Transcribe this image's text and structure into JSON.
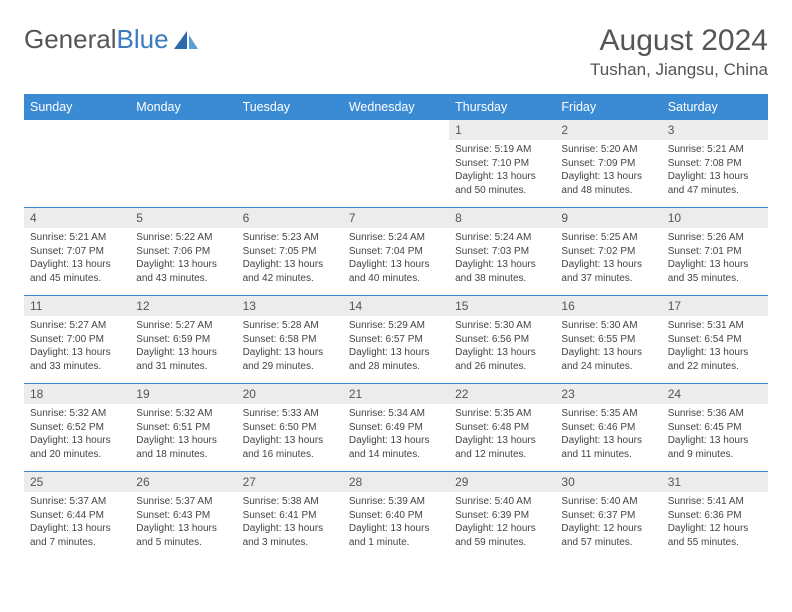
{
  "brand": {
    "part1": "General",
    "part2": "Blue"
  },
  "title": "August 2024",
  "location": "Tushan, Jiangsu, China",
  "colors": {
    "header_bg": "#3b8bd4",
    "rule": "#3b8bd4",
    "daynum_bg": "#ececec",
    "text": "#444"
  },
  "typography": {
    "title_size": 30,
    "location_size": 17,
    "header_size": 12.5,
    "cell_size": 10
  },
  "days": [
    "Sunday",
    "Monday",
    "Tuesday",
    "Wednesday",
    "Thursday",
    "Friday",
    "Saturday"
  ],
  "weeks": [
    [
      null,
      null,
      null,
      null,
      {
        "n": "1",
        "sr": "Sunrise: 5:19 AM",
        "ss": "Sunset: 7:10 PM",
        "dl": "Daylight: 13 hours and 50 minutes."
      },
      {
        "n": "2",
        "sr": "Sunrise: 5:20 AM",
        "ss": "Sunset: 7:09 PM",
        "dl": "Daylight: 13 hours and 48 minutes."
      },
      {
        "n": "3",
        "sr": "Sunrise: 5:21 AM",
        "ss": "Sunset: 7:08 PM",
        "dl": "Daylight: 13 hours and 47 minutes."
      }
    ],
    [
      {
        "n": "4",
        "sr": "Sunrise: 5:21 AM",
        "ss": "Sunset: 7:07 PM",
        "dl": "Daylight: 13 hours and 45 minutes."
      },
      {
        "n": "5",
        "sr": "Sunrise: 5:22 AM",
        "ss": "Sunset: 7:06 PM",
        "dl": "Daylight: 13 hours and 43 minutes."
      },
      {
        "n": "6",
        "sr": "Sunrise: 5:23 AM",
        "ss": "Sunset: 7:05 PM",
        "dl": "Daylight: 13 hours and 42 minutes."
      },
      {
        "n": "7",
        "sr": "Sunrise: 5:24 AM",
        "ss": "Sunset: 7:04 PM",
        "dl": "Daylight: 13 hours and 40 minutes."
      },
      {
        "n": "8",
        "sr": "Sunrise: 5:24 AM",
        "ss": "Sunset: 7:03 PM",
        "dl": "Daylight: 13 hours and 38 minutes."
      },
      {
        "n": "9",
        "sr": "Sunrise: 5:25 AM",
        "ss": "Sunset: 7:02 PM",
        "dl": "Daylight: 13 hours and 37 minutes."
      },
      {
        "n": "10",
        "sr": "Sunrise: 5:26 AM",
        "ss": "Sunset: 7:01 PM",
        "dl": "Daylight: 13 hours and 35 minutes."
      }
    ],
    [
      {
        "n": "11",
        "sr": "Sunrise: 5:27 AM",
        "ss": "Sunset: 7:00 PM",
        "dl": "Daylight: 13 hours and 33 minutes."
      },
      {
        "n": "12",
        "sr": "Sunrise: 5:27 AM",
        "ss": "Sunset: 6:59 PM",
        "dl": "Daylight: 13 hours and 31 minutes."
      },
      {
        "n": "13",
        "sr": "Sunrise: 5:28 AM",
        "ss": "Sunset: 6:58 PM",
        "dl": "Daylight: 13 hours and 29 minutes."
      },
      {
        "n": "14",
        "sr": "Sunrise: 5:29 AM",
        "ss": "Sunset: 6:57 PM",
        "dl": "Daylight: 13 hours and 28 minutes."
      },
      {
        "n": "15",
        "sr": "Sunrise: 5:30 AM",
        "ss": "Sunset: 6:56 PM",
        "dl": "Daylight: 13 hours and 26 minutes."
      },
      {
        "n": "16",
        "sr": "Sunrise: 5:30 AM",
        "ss": "Sunset: 6:55 PM",
        "dl": "Daylight: 13 hours and 24 minutes."
      },
      {
        "n": "17",
        "sr": "Sunrise: 5:31 AM",
        "ss": "Sunset: 6:54 PM",
        "dl": "Daylight: 13 hours and 22 minutes."
      }
    ],
    [
      {
        "n": "18",
        "sr": "Sunrise: 5:32 AM",
        "ss": "Sunset: 6:52 PM",
        "dl": "Daylight: 13 hours and 20 minutes."
      },
      {
        "n": "19",
        "sr": "Sunrise: 5:32 AM",
        "ss": "Sunset: 6:51 PM",
        "dl": "Daylight: 13 hours and 18 minutes."
      },
      {
        "n": "20",
        "sr": "Sunrise: 5:33 AM",
        "ss": "Sunset: 6:50 PM",
        "dl": "Daylight: 13 hours and 16 minutes."
      },
      {
        "n": "21",
        "sr": "Sunrise: 5:34 AM",
        "ss": "Sunset: 6:49 PM",
        "dl": "Daylight: 13 hours and 14 minutes."
      },
      {
        "n": "22",
        "sr": "Sunrise: 5:35 AM",
        "ss": "Sunset: 6:48 PM",
        "dl": "Daylight: 13 hours and 12 minutes."
      },
      {
        "n": "23",
        "sr": "Sunrise: 5:35 AM",
        "ss": "Sunset: 6:46 PM",
        "dl": "Daylight: 13 hours and 11 minutes."
      },
      {
        "n": "24",
        "sr": "Sunrise: 5:36 AM",
        "ss": "Sunset: 6:45 PM",
        "dl": "Daylight: 13 hours and 9 minutes."
      }
    ],
    [
      {
        "n": "25",
        "sr": "Sunrise: 5:37 AM",
        "ss": "Sunset: 6:44 PM",
        "dl": "Daylight: 13 hours and 7 minutes."
      },
      {
        "n": "26",
        "sr": "Sunrise: 5:37 AM",
        "ss": "Sunset: 6:43 PM",
        "dl": "Daylight: 13 hours and 5 minutes."
      },
      {
        "n": "27",
        "sr": "Sunrise: 5:38 AM",
        "ss": "Sunset: 6:41 PM",
        "dl": "Daylight: 13 hours and 3 minutes."
      },
      {
        "n": "28",
        "sr": "Sunrise: 5:39 AM",
        "ss": "Sunset: 6:40 PM",
        "dl": "Daylight: 13 hours and 1 minute."
      },
      {
        "n": "29",
        "sr": "Sunrise: 5:40 AM",
        "ss": "Sunset: 6:39 PM",
        "dl": "Daylight: 12 hours and 59 minutes."
      },
      {
        "n": "30",
        "sr": "Sunrise: 5:40 AM",
        "ss": "Sunset: 6:37 PM",
        "dl": "Daylight: 12 hours and 57 minutes."
      },
      {
        "n": "31",
        "sr": "Sunrise: 5:41 AM",
        "ss": "Sunset: 6:36 PM",
        "dl": "Daylight: 12 hours and 55 minutes."
      }
    ]
  ]
}
